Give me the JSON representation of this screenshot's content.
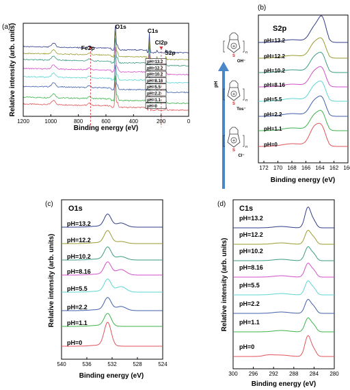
{
  "series_colors": [
    "#e05258",
    "#3cb34b",
    "#3f5fa8",
    "#5bd6d0",
    "#d24fc8",
    "#3a9a82",
    "#9a9a2e",
    "#2f3b88"
  ],
  "arrow_color": "#4a86c8",
  "chart_data": [
    {
      "panel": "(a)",
      "type": "line",
      "title": "",
      "xlabel": "Binding energy (eV)",
      "ylabel": "Relative intensity (arb. units)",
      "xlim": [
        1200,
        0
      ],
      "xticks": [
        "1200",
        "1000",
        "800",
        "600",
        "400",
        "200",
        "0"
      ],
      "legend_placement": "right, between peaks",
      "series": [
        {
          "name": "pH=0"
        },
        {
          "name": "pH=1.1"
        },
        {
          "name": "pH=2.2"
        },
        {
          "name": "pH=5.5"
        },
        {
          "name": "pH=8.16"
        },
        {
          "name": "pH=10.2"
        },
        {
          "name": "pH=12.2"
        },
        {
          "name": "pH=13.2"
        }
      ],
      "peaks": [
        {
          "label": "Fe2p",
          "x": 711,
          "marker": "dashed"
        },
        {
          "label": "O1s",
          "x": 532
        },
        {
          "label": "C1s",
          "x": 285
        },
        {
          "label": "Cl2p",
          "x": 199,
          "marker": "dashed"
        },
        {
          "label": "S2p",
          "x": 164
        }
      ]
    },
    {
      "panel": "(b)",
      "type": "line",
      "title": "S2p",
      "xlabel": "Binding energy (eV)",
      "ylabel": "",
      "xlim": [
        173,
        160
      ],
      "xticks": [
        "172",
        "170",
        "168",
        "166",
        "164",
        "162",
        "160"
      ],
      "series": [
        {
          "name": "pH=0"
        },
        {
          "name": "pH=1.1"
        },
        {
          "name": "pH=2.2"
        },
        {
          "name": "pH=5.5"
        },
        {
          "name": "pH=8.16"
        },
        {
          "name": "pH=10.2"
        },
        {
          "name": "pH=12.2"
        },
        {
          "name": "pH=13.2"
        }
      ],
      "peaks_ev": [
        165.0,
        163.8
      ]
    },
    {
      "panel": "(c)",
      "type": "line",
      "title": "O1s",
      "xlabel": "Binding energy (eV)",
      "ylabel": "Relative intensity (arb. units)",
      "xlim": [
        540,
        524
      ],
      "xticks": [
        "540",
        "536",
        "532",
        "528",
        "524"
      ],
      "series": [
        {
          "name": "pH=0"
        },
        {
          "name": "pH=1.1"
        },
        {
          "name": "pH=2.2"
        },
        {
          "name": "pH=5.5"
        },
        {
          "name": "pH=8.16"
        },
        {
          "name": "pH=10.2"
        },
        {
          "name": "pH=12.2"
        },
        {
          "name": "pH=13.2"
        }
      ],
      "peaks_ev": [
        532.6,
        530.8
      ]
    },
    {
      "panel": "(d)",
      "type": "line",
      "title": "C1s",
      "xlabel": "Binding energy (eV)",
      "ylabel": "Relative intensity (arb. units)",
      "xlim": [
        300,
        280
      ],
      "xticks": [
        "300",
        "296",
        "292",
        "288",
        "284",
        "280"
      ],
      "series": [
        {
          "name": "pH=0"
        },
        {
          "name": "pH=1.1"
        },
        {
          "name": "pH=2.2"
        },
        {
          "name": "pH=5.5"
        },
        {
          "name": "pH=8.16"
        },
        {
          "name": "pH=10.2"
        },
        {
          "name": "pH=12.2"
        },
        {
          "name": "pH=13.2"
        }
      ],
      "peaks_ev": [
        285.2,
        284.2
      ]
    }
  ],
  "schematic": {
    "axis_label": "pH",
    "counter_ions": [
      "OH⁻",
      "Tos⁻",
      "Cl⁻"
    ],
    "monomer_atom": "S",
    "repeat_index": "n",
    "charge": "+"
  }
}
